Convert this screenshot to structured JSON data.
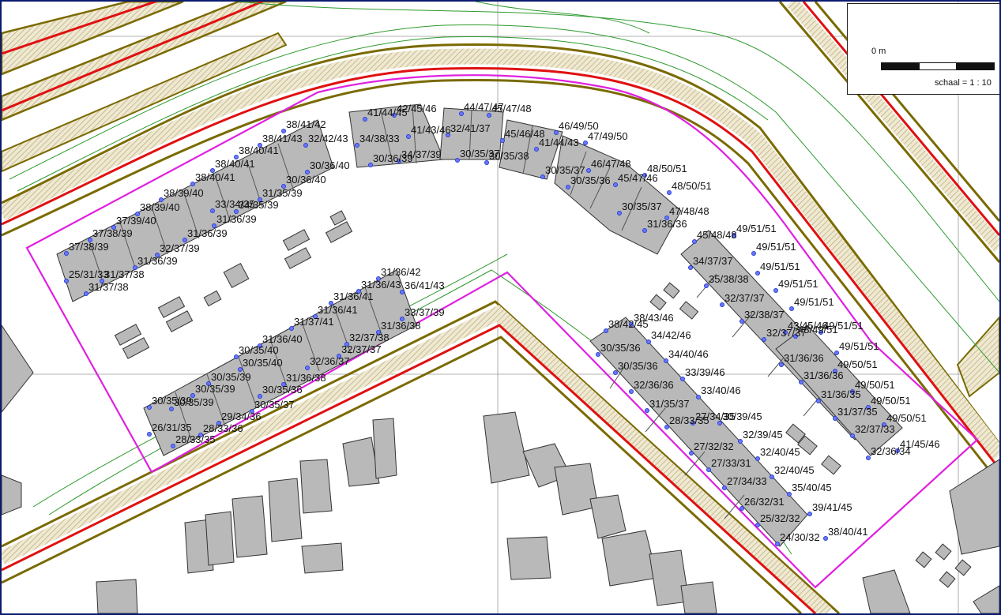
{
  "map": {
    "scale_zero": "0 m",
    "scale_text": "schaal = 1 : 10",
    "colors": {
      "road_outline": "#7a6a00",
      "road_red": "#e01010",
      "road_hatch": "#c7b98a",
      "contour": "#2e9a2e",
      "boundary": "#e020e0",
      "building_fill": "#b9b9b9",
      "building_stroke": "#333333",
      "grid": "#9a9a9a",
      "point": "#2b3fd0"
    },
    "labels": [
      "41/44/45",
      "42/45/46",
      "44/47/47",
      "45/47/48",
      "38/41/42",
      "38/41/43",
      "38/40/41",
      "38/40/41",
      "38/40/41",
      "38/39/40",
      "38/39/40",
      "37/39/40",
      "37/38/39",
      "37/38/39",
      "34/38/33",
      "32/42/43",
      "41/43/46",
      "32/41/37",
      "34/37/39",
      "30/35/37",
      "30/36/39",
      "30/36/40",
      "30/36/40",
      "45/46/48",
      "46/49/50",
      "41/44/43",
      "47/49/50",
      "30/35/38",
      "46/47/48",
      "48/50/51",
      "30/35/37",
      "30/35/36",
      "45/47/46",
      "48/50/51",
      "30/35/37",
      "47/48/48",
      "31/36/36",
      "33/34/35",
      "34/35/39",
      "31/35/39",
      "31/36/39",
      "31/36/39",
      "32/37/39",
      "31/36/39",
      "25/31/33",
      "31/37/38",
      "31/37/38",
      "31/36/42",
      "31/36/43",
      "36/41/43",
      "31/36/41",
      "31/36/41",
      "31/37/41",
      "33/37/39",
      "31/36/38",
      "32/37/38",
      "32/37/37",
      "32/36/37",
      "31/36/40",
      "30/35/40",
      "30/35/40",
      "30/35/39",
      "30/35/39",
      "30/35/39",
      "30/35/39",
      "31/36/38",
      "30/35/36",
      "30/35/37",
      "29/34/36",
      "28/33/36",
      "26/31/35",
      "28/33/35",
      "49/51/51",
      "45/48/48",
      "49/51/51",
      "34/37/37",
      "49/51/51",
      "35/38/38",
      "49/51/51",
      "32/37/37",
      "49/51/51",
      "32/38/37",
      "43/45/46",
      "49/51/51",
      "32/37/37",
      "48/49/51",
      "49/51/51",
      "31/36/36",
      "49/50/51",
      "31/36/36",
      "49/50/51",
      "31/36/35",
      "49/50/51",
      "31/37/35",
      "49/50/51",
      "32/37/33",
      "41/45/46",
      "32/36/34",
      "38/42/45",
      "38/43/46",
      "34/42/46",
      "30/35/36",
      "34/40/46",
      "30/35/36",
      "33/39/46",
      "32/36/36",
      "33/40/46",
      "31/35/37",
      "28/33/35",
      "27/34/35",
      "30/39/45",
      "32/39/45",
      "27/32/32",
      "32/40/45",
      "27/33/31",
      "32/40/45",
      "27/34/33",
      "35/40/45",
      "26/32/31",
      "39/41/45",
      "25/32/32",
      "38/40/41",
      "24/30/32"
    ]
  }
}
